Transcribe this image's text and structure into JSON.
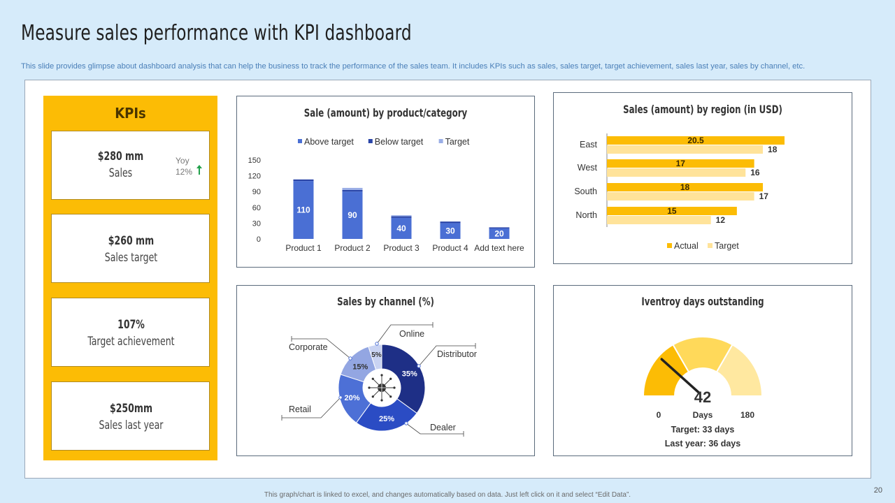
{
  "header": {
    "title": "Measure sales performance with KPI dashboard",
    "subtitle": "This slide provides glimpse about dashboard analysis that can help the business to track the performance of the sales team. It includes KPIs such as sales, sales target, target achievement, sales last year, sales by channel, etc."
  },
  "kpis": {
    "heading": "KPIs",
    "cards": [
      {
        "value": "$280  mm",
        "label": "Sales",
        "yoy_label": "Yoy",
        "yoy_value": "12%"
      },
      {
        "value": "$260  mm",
        "label": "Sales target"
      },
      {
        "value": "107%",
        "label": "Target achievement"
      },
      {
        "value": "$250mm",
        "label": "Sales last year"
      }
    ],
    "colors": {
      "panel": "#fcbc05",
      "up_arrow": "#22a04b"
    }
  },
  "chart_data": [
    {
      "type": "bar",
      "title": "Sale (amount) by product/category",
      "categories": [
        "Product 1",
        "Product 2",
        "Product 3",
        "Product 4",
        "Add text here"
      ],
      "series": [
        {
          "name": "Above target",
          "values": [
            110,
            90,
            40,
            30,
            20
          ],
          "color": "#4a6fd4"
        },
        {
          "name": "Below target",
          "values": [
            3,
            3,
            3,
            3,
            2
          ],
          "color": "#2a45a8"
        },
        {
          "name": "Target",
          "values": [
            0,
            4,
            2,
            0,
            0
          ],
          "color": "#9aaee6"
        }
      ],
      "data_labels": [
        "110",
        "90",
        "40",
        "30",
        "20"
      ],
      "ylim": [
        0,
        150
      ],
      "yticks": [
        "150",
        "120",
        "90",
        "60",
        "30",
        "0"
      ],
      "legend": "top"
    },
    {
      "type": "bar",
      "orientation": "horizontal",
      "title": "Sales (amount) by region (in USD)",
      "categories": [
        "East",
        "West",
        "South",
        "North"
      ],
      "series": [
        {
          "name": "Actual",
          "values": [
            20.5,
            17,
            18,
            15
          ],
          "labels": [
            "20.5",
            "17",
            "18",
            "15"
          ],
          "color": "#fcbc05"
        },
        {
          "name": "Target",
          "values": [
            18,
            16,
            17,
            12
          ],
          "labels": [
            "18",
            "16",
            "17",
            "12"
          ],
          "color": "#ffe39a"
        }
      ],
      "xlim": [
        0,
        25
      ],
      "legend": "bottom"
    },
    {
      "type": "pie",
      "title": "Sales by channel (%)",
      "slices": [
        {
          "name": "Distributor",
          "value": 35,
          "label": "35%",
          "color": "#1e2f86"
        },
        {
          "name": "Dealer",
          "value": 25,
          "label": "25%",
          "color": "#2b4cc4"
        },
        {
          "name": "Retail",
          "value": 20,
          "label": "20%",
          "color": "#4d70d6"
        },
        {
          "name": "Corporate",
          "value": 15,
          "label": "15%",
          "color": "#93a6e2"
        },
        {
          "name": "Online",
          "value": 5,
          "label": "5%",
          "color": "#c9d3f2"
        }
      ]
    },
    {
      "type": "gauge",
      "title": "Iventroy days outstanding",
      "value": 42,
      "value_text": "42",
      "min": 0,
      "max": 180,
      "min_label": "0",
      "max_label": "180",
      "unit": "Days",
      "bands": [
        {
          "to": 60,
          "color": "#fcbc05"
        },
        {
          "to": 120,
          "color": "#ffd95a"
        },
        {
          "to": 180,
          "color": "#ffe8a0"
        }
      ],
      "target_text": "Target: 33 days",
      "last_year_text": "Last year: 36 days"
    }
  ],
  "footer": {
    "note": "This graph/chart is linked to excel, and changes automatically based on data. Just left click on it and select “Edit Data”.",
    "page_number": "20"
  }
}
